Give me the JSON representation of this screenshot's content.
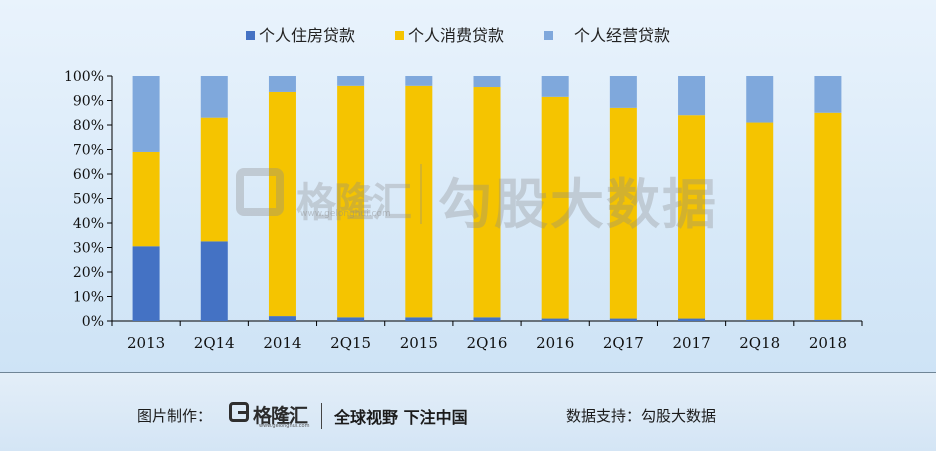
{
  "chart_data": {
    "type": "bar",
    "stacked": true,
    "normalized": true,
    "categories": [
      "2013",
      "2Q14",
      "2014",
      "2Q15",
      "2015",
      "2Q16",
      "2016",
      "2Q17",
      "2017",
      "2Q18",
      "2018"
    ],
    "series": [
      {
        "name": "个人住房贷款",
        "color": "#4472c4",
        "values": [
          30.5,
          32.5,
          2.0,
          1.5,
          1.5,
          1.5,
          1.0,
          1.0,
          1.0,
          0.5,
          0.5
        ]
      },
      {
        "name": "个人消费贷款",
        "color": "#f5c400",
        "values": [
          38.5,
          50.5,
          91.5,
          94.5,
          94.5,
          94.0,
          90.5,
          86.0,
          83.0,
          80.5,
          84.5
        ]
      },
      {
        "name": "个人经营贷款",
        "color": "#7fa8dc",
        "values": [
          31.0,
          17.0,
          6.5,
          4.0,
          4.0,
          4.5,
          8.5,
          13.0,
          16.0,
          19.0,
          15.0
        ]
      }
    ],
    "yticks": [
      "0%",
      "10%",
      "20%",
      "30%",
      "40%",
      "50%",
      "60%",
      "70%",
      "80%",
      "90%",
      "100%"
    ],
    "ylim": [
      0,
      100
    ],
    "legend_position": "top"
  },
  "watermark": {
    "brand": "格隆汇",
    "url": "www.gelonghui.com",
    "text": "勾股大数据"
  },
  "footer": {
    "credit_label": "图片制作：",
    "logo_name": "格隆汇",
    "logo_url": "www.gelonghui.com",
    "slogan": "全球视野 下注中国",
    "support": "数据支持：勾股大数据"
  }
}
